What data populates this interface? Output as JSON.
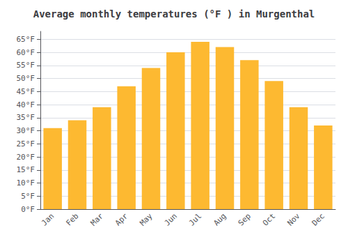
{
  "chart_data": {
    "type": "bar",
    "title": "Average monthly temperatures (°F ) in Murgenthal",
    "categories": [
      "Jan",
      "Feb",
      "Mar",
      "Apr",
      "May",
      "Jun",
      "Jul",
      "Aug",
      "Sep",
      "Oct",
      "Nov",
      "Dec"
    ],
    "values": [
      31,
      34,
      39,
      47,
      54,
      60,
      64,
      62,
      57,
      49,
      39,
      32
    ],
    "color": "#FDB931",
    "ylim": [
      0,
      68
    ],
    "yticks": [
      {
        "value": 0,
        "label": "0°F"
      },
      {
        "value": 5,
        "label": "5°F"
      },
      {
        "value": 10,
        "label": "10°F"
      },
      {
        "value": 15,
        "label": "15°F"
      },
      {
        "value": 20,
        "label": "20°F"
      },
      {
        "value": 25,
        "label": "25°F"
      },
      {
        "value": 30,
        "label": "30°F"
      },
      {
        "value": 35,
        "label": "35°F"
      },
      {
        "value": 40,
        "label": "40°F"
      },
      {
        "value": 45,
        "label": "45°F"
      },
      {
        "value": 50,
        "label": "50°F"
      },
      {
        "value": 55,
        "label": "55°F"
      },
      {
        "value": 60,
        "label": "60°F"
      },
      {
        "value": 65,
        "label": "65°F"
      }
    ],
    "grid": true
  }
}
